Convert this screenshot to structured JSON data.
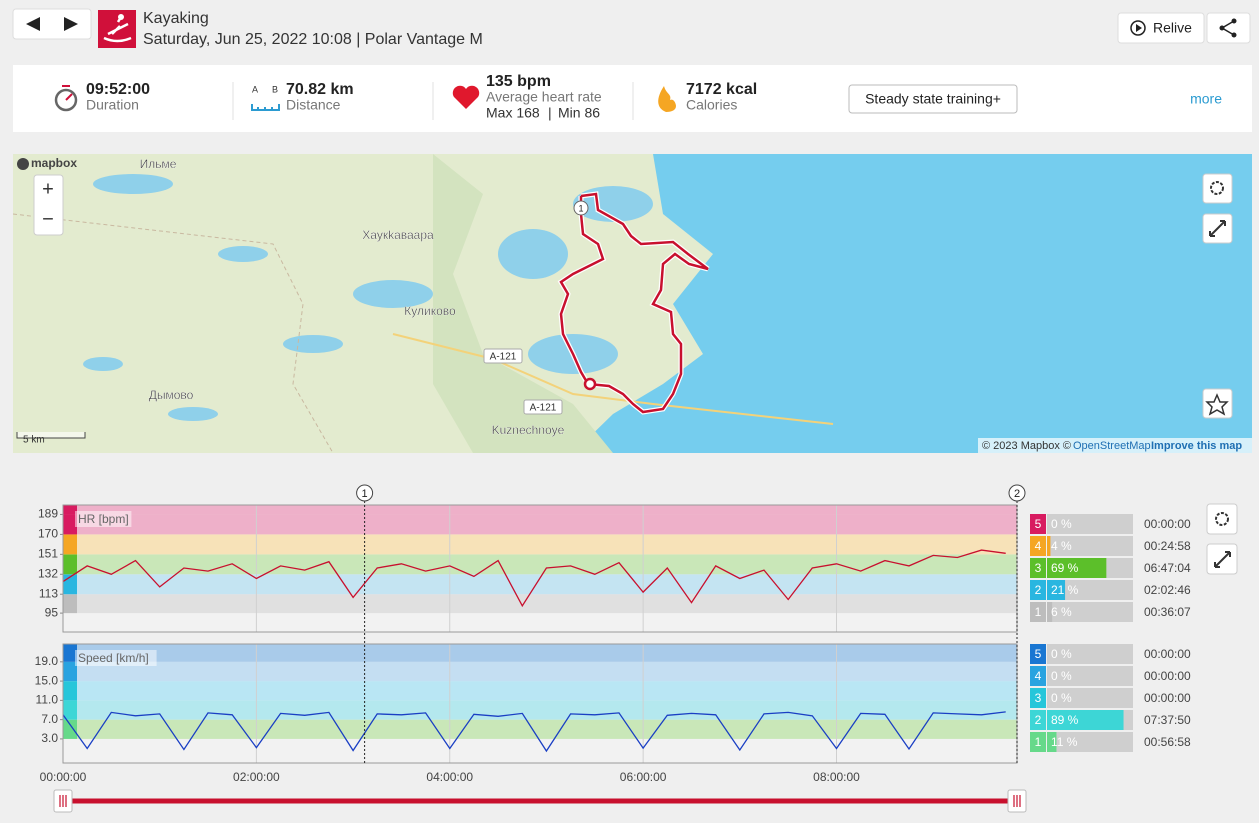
{
  "header": {
    "title": "Kayaking",
    "subtitle": "Saturday, Jun 25, 2022 10:08 | Polar Vantage M",
    "relive": "Relive"
  },
  "summary": {
    "duration": {
      "value": "09:52:00",
      "label": "Duration"
    },
    "distance": {
      "value": "70.82 km",
      "label": "Distance",
      "a": "A",
      "b": "B"
    },
    "heart_rate": {
      "value": "135 bpm",
      "label": "Average heart rate",
      "max": "Max 168",
      "separator": "|",
      "min": "Min 86"
    },
    "calories": {
      "value": "7172 kcal",
      "label": "Calories"
    },
    "training_benefit": "Steady state training+",
    "more": "more"
  },
  "map": {
    "logo": "mapbox",
    "places": [
      "Ильме",
      "Хаукkаваара",
      "Куликово",
      "Дымово",
      "Kuznechnoye"
    ],
    "roads": [
      "A-121",
      "A-121"
    ],
    "lap_marker": "1",
    "scale": "5 km",
    "zoom_in": "+",
    "zoom_out": "−",
    "attribution": {
      "copyright": "© 2023 Mapbox ©",
      "osm": "OpenStreetMap",
      "improve": "Improve this map"
    }
  },
  "x_axis": {
    "xlim": [
      0,
      35520
    ],
    "xticks": [
      {
        "value": 0,
        "label": "00:00:00"
      },
      {
        "value": 7200,
        "label": "02:00:00"
      },
      {
        "value": 14400,
        "label": "04:00:00"
      },
      {
        "value": 21600,
        "label": "06:00:00"
      },
      {
        "value": 28800,
        "label": "08:00:00"
      }
    ],
    "laps": [
      {
        "value": 11230,
        "label": "1"
      },
      {
        "value": 35520,
        "label": "2"
      }
    ]
  },
  "hr_chart": {
    "type": "line",
    "label": "HR [bpm]",
    "color": "#c8102e",
    "ylim": [
      77,
      198
    ],
    "yticks": [
      95,
      113,
      132,
      151,
      170,
      189
    ],
    "band_colors": [
      "#e0e0e0",
      "#c4e4f2",
      "#c9e7b8",
      "#f7e2b8",
      "#eeb0c9",
      "#eeb0c9"
    ],
    "x": [
      0,
      900,
      1800,
      2700,
      3600,
      4500,
      5400,
      6300,
      7200,
      8100,
      9000,
      9900,
      10800,
      11700,
      12600,
      13500,
      14400,
      15300,
      16200,
      17100,
      18000,
      18900,
      19800,
      20700,
      21600,
      22500,
      23400,
      24300,
      25200,
      26100,
      27000,
      27900,
      28800,
      29700,
      30600,
      31500,
      32400,
      33300,
      34200,
      35100
    ],
    "values": [
      125,
      140,
      132,
      145,
      120,
      138,
      135,
      142,
      128,
      140,
      136,
      144,
      110,
      138,
      142,
      135,
      140,
      130,
      145,
      102,
      138,
      140,
      132,
      143,
      115,
      138,
      105,
      140,
      128,
      136,
      108,
      138,
      142,
      135,
      145,
      140,
      150,
      148,
      155,
      152
    ],
    "zones": {
      "names": [
        5,
        4,
        3,
        2,
        1
      ],
      "values": [
        0,
        4,
        69,
        21,
        6
      ],
      "value_labels": [
        "0 %",
        "4 %",
        "69 %",
        "21 %",
        "6 %"
      ],
      "times": [
        "00:00:00",
        "00:24:58",
        "06:47:04",
        "02:02:46",
        "00:36:07"
      ],
      "colors": [
        "#d81b60",
        "#f5a623",
        "#5cbf2a",
        "#29b6e0",
        "#bdbdbd"
      ]
    }
  },
  "speed_chart": {
    "type": "line",
    "label": "Speed [km/h]",
    "color": "#1a3fc4",
    "ylim": [
      -2,
      22.7
    ],
    "yticks": [
      {
        "value": 3,
        "label": "3.0"
      },
      {
        "value": 7,
        "label": "7.0"
      },
      {
        "value": 11,
        "label": "11.0"
      },
      {
        "value": 15,
        "label": "15.0"
      },
      {
        "value": 19,
        "label": "19.0"
      }
    ],
    "band_colors": [
      "#c9e7b8",
      "#b4e8ee",
      "#b9e6f4",
      "#c4def2",
      "#a9cbea"
    ],
    "x": [
      0,
      900,
      1800,
      2700,
      3600,
      4500,
      5400,
      6300,
      7200,
      8100,
      9000,
      9900,
      10800,
      11700,
      12600,
      13500,
      14400,
      15300,
      16200,
      17100,
      18000,
      18900,
      19800,
      20700,
      21600,
      22500,
      23400,
      24300,
      25200,
      26100,
      27000,
      27900,
      28800,
      29700,
      30600,
      31500,
      32400,
      33300,
      34200,
      35100
    ],
    "values": [
      8,
      1,
      8.5,
      7.8,
      8.2,
      0.8,
      8.4,
      8,
      1.2,
      8.3,
      7.9,
      8.5,
      0.6,
      8.2,
      8,
      8.4,
      1,
      8.1,
      7.7,
      8.3,
      0.5,
      8.2,
      8,
      8.4,
      1.1,
      7.9,
      8.3,
      8,
      0.7,
      8.2,
      8.5,
      7.8,
      1,
      8.3,
      8.1,
      0.9,
      8.4,
      8.2,
      8,
      8.6
    ],
    "zones": {
      "names": [
        5,
        4,
        3,
        2,
        1
      ],
      "values": [
        0,
        0,
        0,
        89,
        11
      ],
      "value_labels": [
        "0 %",
        "0 %",
        "0 %",
        "89 %",
        "11 %"
      ],
      "times": [
        "00:00:00",
        "00:00:00",
        "00:00:00",
        "07:37:50",
        "00:56:58"
      ],
      "colors": [
        "#1976d2",
        "#29a3e0",
        "#26c6da",
        "#3dd6d6",
        "#66d98a"
      ]
    }
  }
}
